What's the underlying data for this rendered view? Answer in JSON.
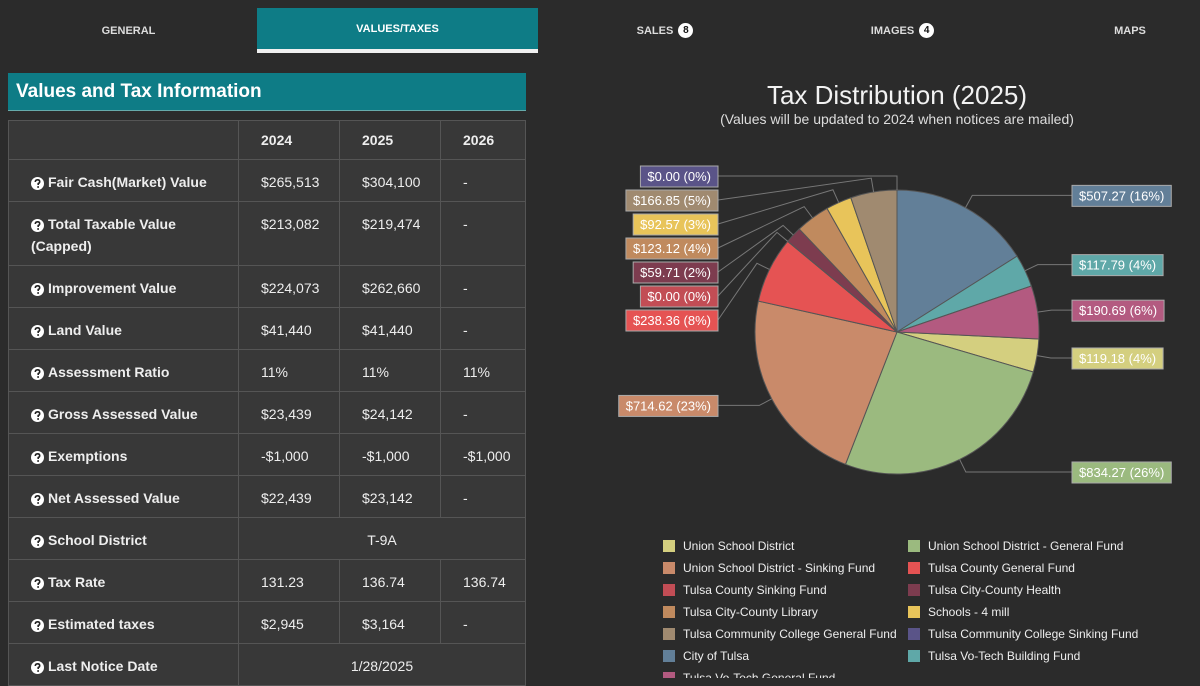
{
  "tabs": [
    {
      "label": "GENERAL"
    },
    {
      "label": "VALUES/TAXES",
      "active": true
    },
    {
      "label": "SALES",
      "badge": 8
    },
    {
      "label": "IMAGES",
      "badge": 4
    },
    {
      "label": "MAPS"
    }
  ],
  "panel": {
    "title": "Values and Tax Information",
    "table": {
      "header": [
        "2024",
        "2025",
        "2026"
      ],
      "rows": [
        {
          "label": "Fair Cash(Market) Value",
          "cells": [
            "$265,513",
            "$304,100",
            "-"
          ]
        },
        {
          "label": "Total Taxable Value (Capped)",
          "cells": [
            "$213,082",
            "$219,474",
            "-"
          ]
        },
        {
          "label": "Improvement Value",
          "cells": [
            "$224,073",
            "$262,660",
            "-"
          ]
        },
        {
          "label": "Land Value",
          "cells": [
            "$41,440",
            "$41,440",
            "-"
          ]
        },
        {
          "label": "Assessment Ratio",
          "cells": [
            "11%",
            "11%",
            "11%"
          ]
        },
        {
          "label": "Gross Assessed Value",
          "cells": [
            "$23,439",
            "$24,142",
            "-"
          ]
        },
        {
          "label": "Exemptions",
          "cells": [
            "-$1,000",
            "-$1,000",
            "-$1,000"
          ]
        },
        {
          "label": "Net Assessed Value",
          "cells": [
            "$22,439",
            "$23,142",
            "-"
          ]
        },
        {
          "label": "School District",
          "cells": [
            "T-9A"
          ]
        },
        {
          "label": "Tax Rate",
          "cells": [
            "131.23",
            "136.74",
            "136.74"
          ]
        },
        {
          "label": "Estimated taxes",
          "cells": [
            "$2,945",
            "$3,164",
            "-"
          ]
        },
        {
          "label": "Last Notice Date",
          "cells": [
            "1/28/2025"
          ]
        }
      ]
    }
  },
  "chart_data": {
    "type": "pie",
    "title": "Tax Distribution (2025)",
    "subtitle": "(Values will be updated to 2024 when notices are mailed)",
    "categories": [
      "Union School District",
      "Union School District - General Fund",
      "Union School District - Sinking Fund",
      "Tulsa County General Fund",
      "Tulsa County Sinking Fund",
      "Tulsa City-County Health",
      "Tulsa City-County Library",
      "Schools - 4 mill",
      "Tulsa Community College General Fund",
      "Tulsa Community College Sinking Fund",
      "City of Tulsa",
      "Tulsa Vo-Tech Building Fund",
      "Tulsa Vo-Tech General Fund"
    ],
    "values": [
      119.18,
      834.27,
      714.62,
      238.36,
      0,
      59.71,
      123.12,
      92.57,
      166.85,
      0,
      507.27,
      117.79,
      190.69
    ],
    "value_labels": [
      "$119.18 (4%)",
      "$834.27 (26%)",
      "$714.62 (23%)",
      "$238.36 (8%)",
      "$0.00 (0%)",
      "$59.71 (2%)",
      "$123.12 (4%)",
      "$92.57 (3%)",
      "$166.85 (5%)",
      "$0.00 (0%)",
      "$507.27 (16%)",
      "$117.79 (4%)",
      "$190.69 (6%)"
    ],
    "colors": [
      "#d4cf7f",
      "#9bba7f",
      "#c98a6a",
      "#e55353",
      "#c24d55",
      "#7d3c4f",
      "#c08a5e",
      "#e8c45a",
      "#a08a70",
      "#5a5488",
      "#627f98",
      "#5fa8a8",
      "#b35a80"
    ]
  }
}
